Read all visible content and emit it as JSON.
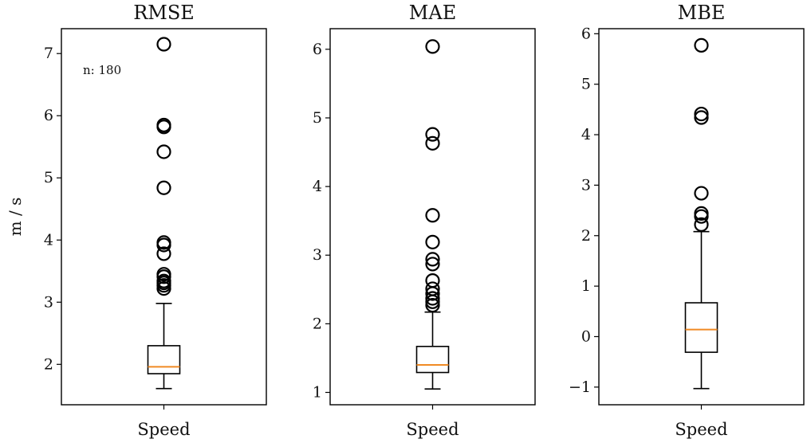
{
  "chart_data": [
    {
      "type": "box",
      "title": "RMSE",
      "ylabel": "m / s",
      "categories": [
        "Speed"
      ],
      "annotation": "n: 180",
      "ylim": [
        1.35,
        7.4
      ],
      "yticks": [
        2,
        3,
        4,
        5,
        6,
        7
      ],
      "box": {
        "whisker_low": 1.61,
        "q1": 1.85,
        "median": 1.96,
        "q3": 2.3,
        "whisker_high": 2.98
      },
      "outliers": [
        3.22,
        3.27,
        3.31,
        3.34,
        3.41,
        3.45,
        3.78,
        3.92,
        3.96,
        4.84,
        5.42,
        5.82,
        5.85,
        7.15
      ],
      "grid": false
    },
    {
      "type": "box",
      "title": "MAE",
      "ylabel": "",
      "categories": [
        "Speed"
      ],
      "annotation": "",
      "ylim": [
        0.82,
        6.3
      ],
      "yticks": [
        1,
        2,
        3,
        4,
        5,
        6
      ],
      "box": {
        "whisker_low": 1.05,
        "q1": 1.29,
        "median": 1.4,
        "q3": 1.67,
        "whisker_high": 2.17
      },
      "outliers": [
        2.27,
        2.32,
        2.37,
        2.44,
        2.51,
        2.63,
        2.87,
        2.94,
        3.19,
        3.58,
        4.63,
        4.76,
        6.04
      ],
      "grid": false
    },
    {
      "type": "box",
      "title": "MBE",
      "ylabel": "",
      "categories": [
        "Speed"
      ],
      "annotation": "",
      "ylim": [
        -1.35,
        6.1
      ],
      "yticks": [
        -1,
        0,
        1,
        2,
        3,
        4,
        5,
        6
      ],
      "box": {
        "whisker_low": -1.03,
        "q1": -0.31,
        "median": 0.14,
        "q3": 0.67,
        "whisker_high": 2.08
      },
      "outliers": [
        2.22,
        2.38,
        2.44,
        2.84,
        4.34,
        4.41,
        5.77
      ],
      "grid": false
    }
  ],
  "colors": {
    "median": "#f08a24",
    "box": "#000000",
    "outlier_edge": "#000000",
    "background": "#ffffff"
  }
}
